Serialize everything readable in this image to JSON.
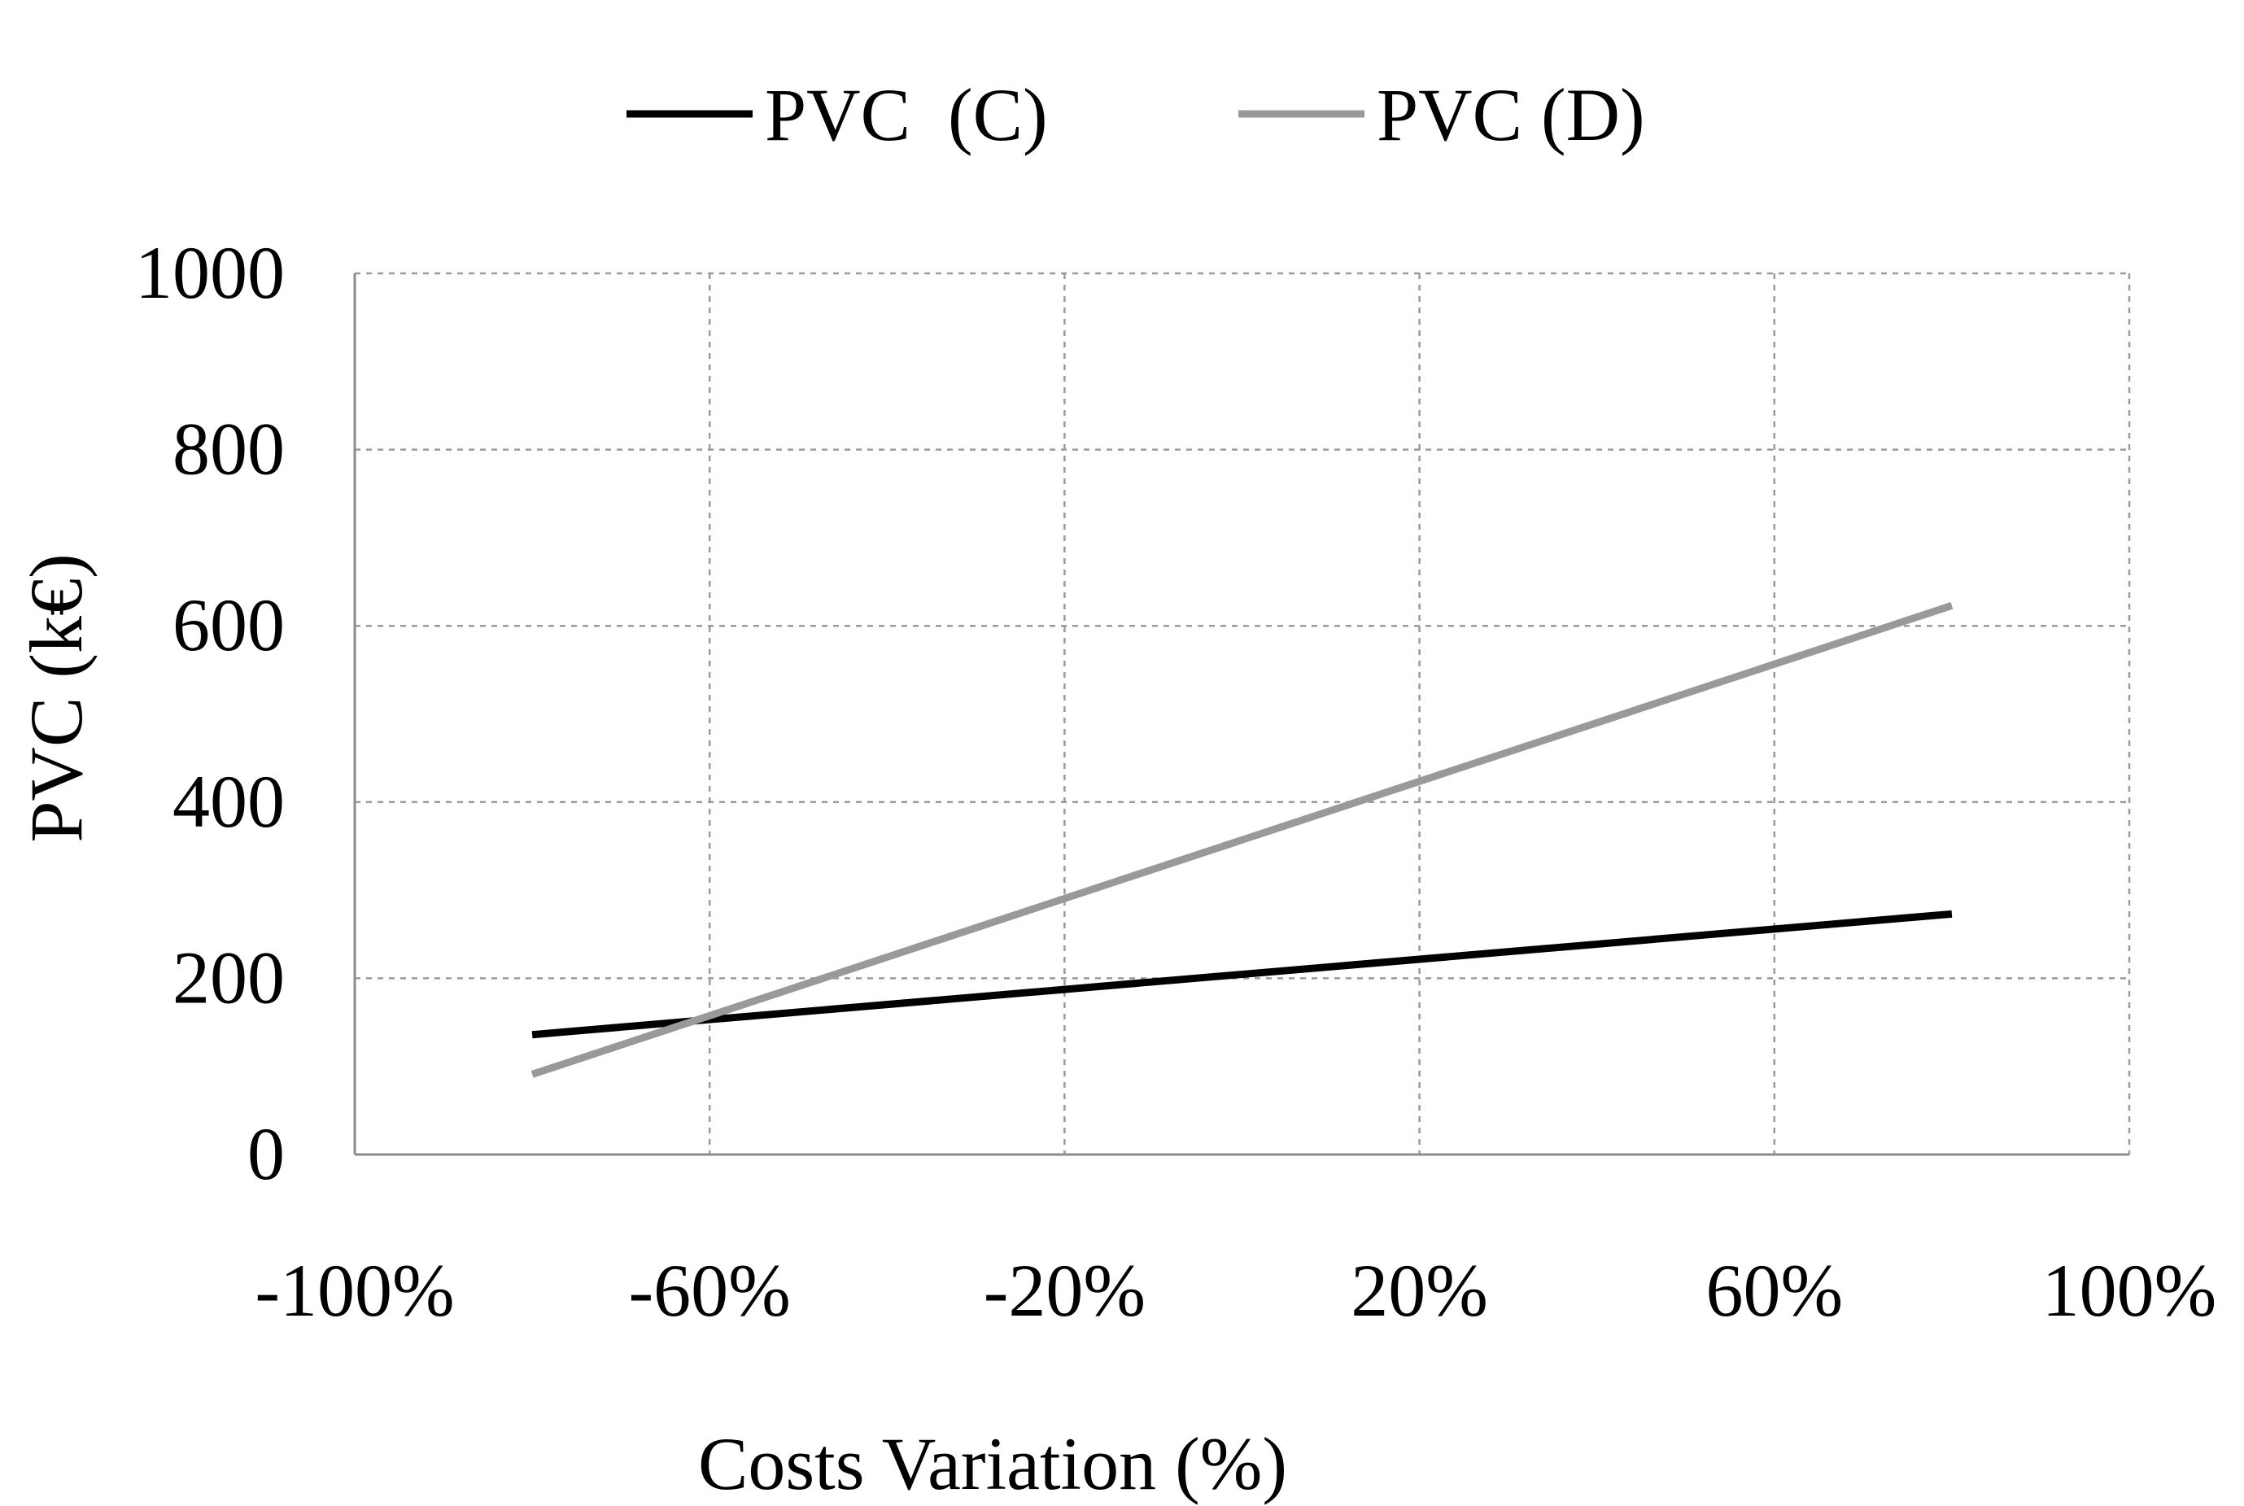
{
  "chart_data": {
    "type": "line",
    "title": "",
    "xlabel": "Costs Variation (%)",
    "ylabel": "PVC (k€)",
    "xlim": [
      -100,
      100
    ],
    "ylim": [
      0,
      1000
    ],
    "x_ticks": [
      -100,
      -60,
      -20,
      20,
      60,
      100
    ],
    "x_tick_labels": [
      "-100%",
      "-60%",
      "-20%",
      "20%",
      "60%",
      "100%"
    ],
    "y_ticks": [
      0,
      200,
      400,
      600,
      800,
      1000
    ],
    "y_tick_labels": [
      "0",
      "200",
      "400",
      "600",
      "800",
      "1000"
    ],
    "grid": true,
    "legend_position": "top",
    "series": [
      {
        "name": "PVC  (C)",
        "color": "#000000",
        "x": [
          -80,
          80
        ],
        "values": [
          136,
          273
        ]
      },
      {
        "name": "PVC (D)",
        "color": "#999999",
        "x": [
          -80,
          80
        ],
        "values": [
          91,
          623
        ]
      }
    ]
  }
}
